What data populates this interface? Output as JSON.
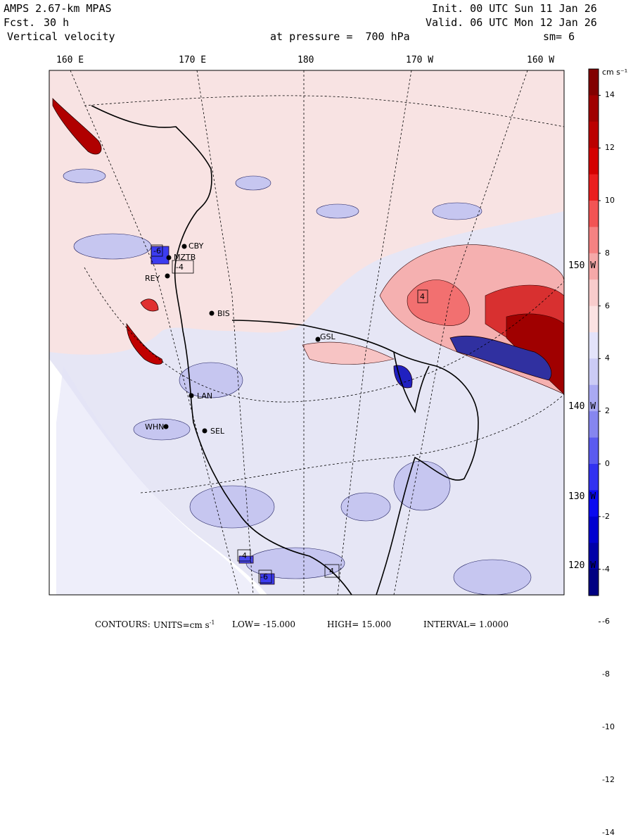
{
  "header": {
    "model": "AMPS 2.67-km MPAS",
    "forecast_label": "Fcst.",
    "forecast_value": "30 h",
    "variable": "Vertical velocity",
    "init": "Init. 00 UTC Sun 11 Jan 26",
    "valid": "Valid. 06 UTC Mon 12 Jan 26",
    "pressure": "at pressure =  700 hPa",
    "smoothing": "sm= 6"
  },
  "longitude_labels": [
    "160 E",
    "170 E",
    "180",
    "170 W",
    "160 W"
  ],
  "latitude_labels": [
    "150 W",
    "140 W",
    "130 W",
    "120 W"
  ],
  "stations": [
    "CBY",
    "MZTB",
    "REY",
    "BIS",
    "GSL",
    "LAN",
    "WHN",
    "SEL"
  ],
  "box_values": [
    "-6",
    "4",
    "-4",
    "-6",
    "4",
    "-4"
  ],
  "colorbar": {
    "units": "cm s⁻¹",
    "ticks": [
      "14",
      "12",
      "10",
      "8",
      "6",
      "4",
      "2",
      "0",
      "-2",
      "-4",
      "-6",
      "-8",
      "-10",
      "-12",
      "-14"
    ],
    "colors": [
      "#820000",
      "#a00000",
      "#bb0000",
      "#d40000",
      "#ea1e1e",
      "#f25454",
      "#f58282",
      "#f5a8a8",
      "#f8cccc",
      "#fbe2e2",
      "#e3e3fa",
      "#cbcbf5",
      "#a9a9f2",
      "#8686ef",
      "#5b5bef",
      "#3232f0",
      "#0a0af0",
      "#0000d0",
      "#0000a8",
      "#000082"
    ]
  },
  "footer": {
    "contours": "CONTOURS:",
    "units_label": "UNITS=cm s",
    "units_sup": "-1",
    "low": "LOW= -15.000",
    "high": "HIGH= 15.000",
    "interval": "INTERVAL= 1.0000"
  }
}
